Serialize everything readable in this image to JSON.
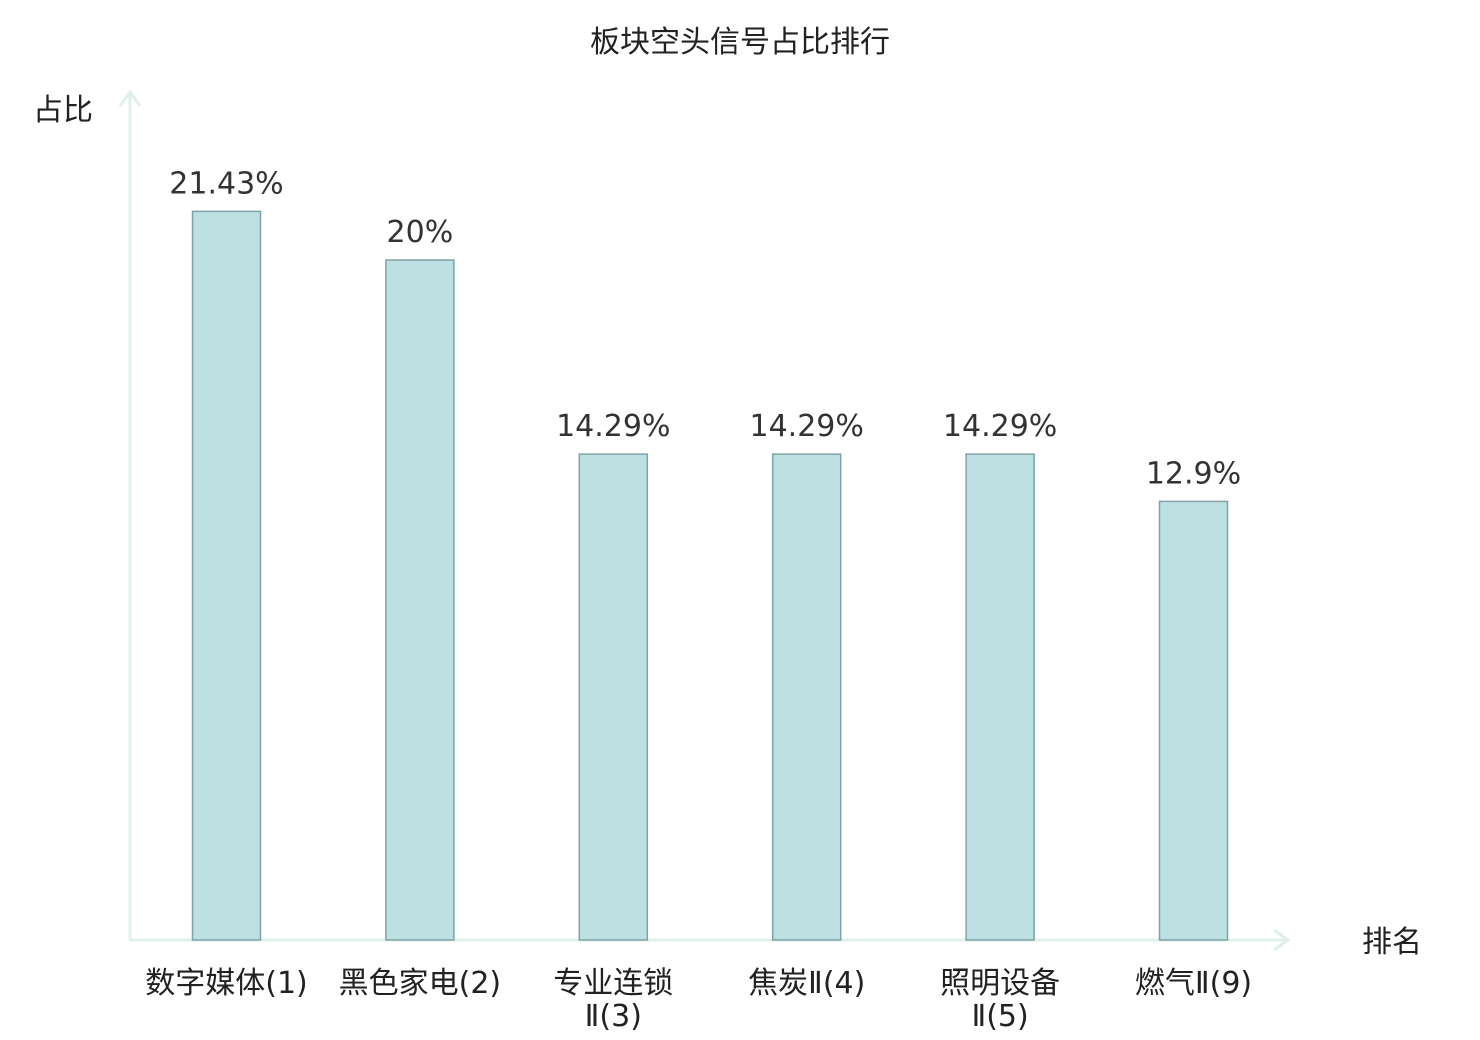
{
  "chart_data": {
    "type": "bar",
    "title": "板块空头信号占比排行",
    "ylabel": "占比",
    "xlabel": "排名",
    "categories": [
      {
        "lines": [
          "数字媒体(1)"
        ],
        "highlight": false
      },
      {
        "lines": [
          "黑色家电(2)"
        ],
        "highlight": false
      },
      {
        "lines": [
          "专业连锁",
          "Ⅱ(3)"
        ],
        "highlight": false
      },
      {
        "lines": [
          "焦炭Ⅱ(4)"
        ],
        "highlight": false
      },
      {
        "lines": [
          "照明设备",
          "Ⅱ(5)"
        ],
        "highlight": false
      },
      {
        "lines": [
          "燃气Ⅱ(9)"
        ],
        "highlight": true
      }
    ],
    "values": [
      21.43,
      20,
      14.29,
      14.29,
      14.29,
      12.9
    ],
    "value_labels": [
      "21.43%",
      "20%",
      "14.29%",
      "14.29%",
      "14.29%",
      "12.9%"
    ],
    "ylim": [
      0,
      25
    ],
    "grid": false,
    "legend": "none",
    "colors": {
      "bar_fill": "#bde0e2",
      "bar_stroke": "#7fa3a6",
      "axis": "#dff0ee",
      "text": "#222222",
      "value_text": "#333333",
      "highlight_text": "#e0141e"
    }
  }
}
